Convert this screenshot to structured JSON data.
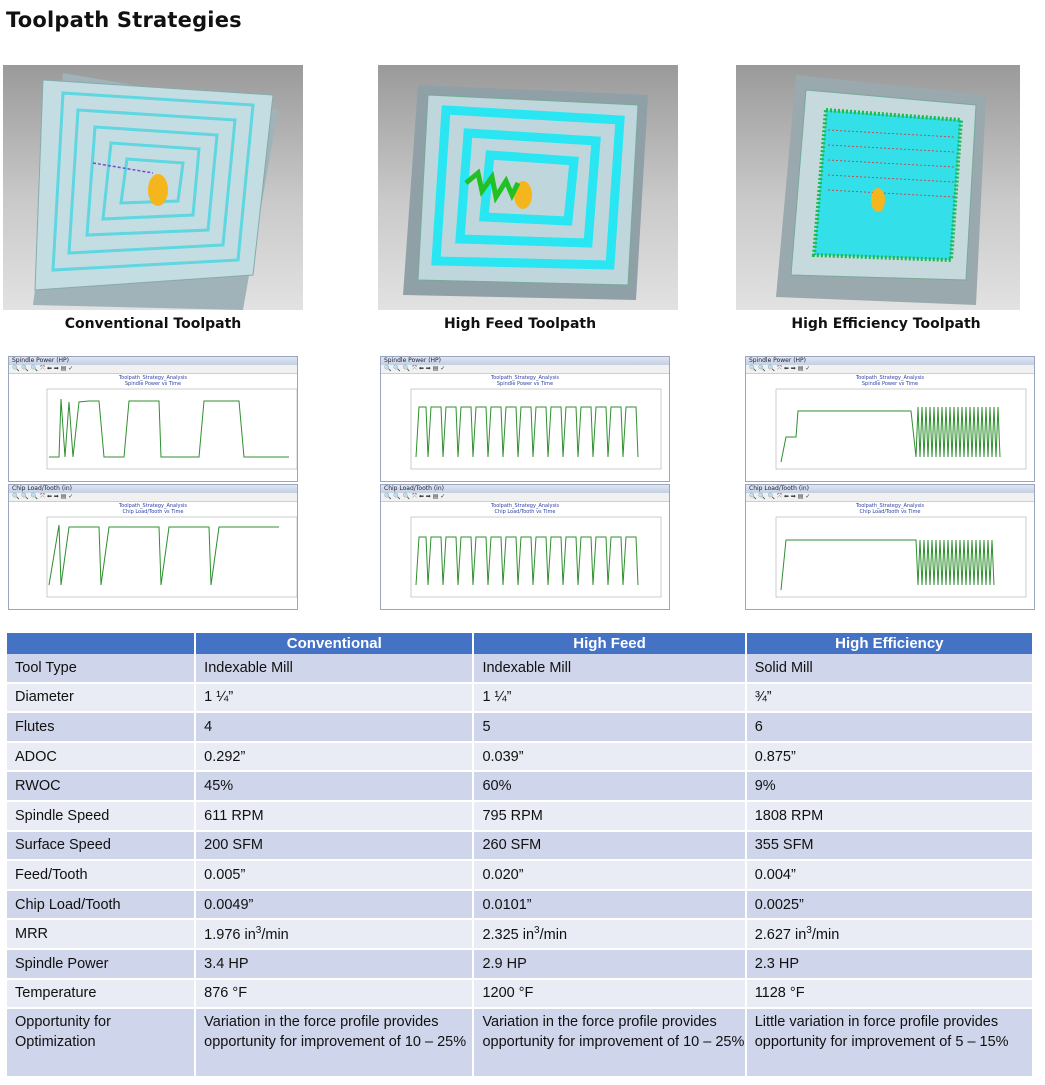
{
  "title": "Toolpath Strategies",
  "panels": [
    {
      "caption": "Conventional Toolpath"
    },
    {
      "caption": "High Feed Toolpath"
    },
    {
      "caption": "High Efficiency Toolpath"
    }
  ],
  "plot_windows": {
    "spindle_title": "Spindle Power (HP)",
    "chipload_title": "Chip Load/Tooth (in)",
    "analysis_title": "Toolpath_Strategy_Analysis",
    "spindle_subtitle": "Spindle Power vs Time",
    "chipload_subtitle": "Chip Load/Tooth vs Time",
    "colors": {
      "trace": "#2f8f2f",
      "frame": "#2b3fa8"
    }
  },
  "table": {
    "headers": [
      "",
      "Conventional",
      "High Feed",
      "High Efficiency"
    ],
    "rows": [
      {
        "label": "Tool Type",
        "values": [
          "Indexable Mill",
          "Indexable Mill",
          "Solid Mill"
        ]
      },
      {
        "label": "Diameter",
        "values": [
          "1 ¼”",
          "1 ¼”",
          "¾”"
        ]
      },
      {
        "label": "Flutes",
        "values": [
          "4",
          "5",
          "6"
        ]
      },
      {
        "label": "ADOC",
        "values": [
          "0.292”",
          "0.039”",
          "0.875”"
        ]
      },
      {
        "label": "RWOC",
        "values": [
          "45%",
          "60%",
          "9%"
        ]
      },
      {
        "label": "Spindle Speed",
        "values": [
          "611 RPM",
          "795 RPM",
          "1808 RPM"
        ]
      },
      {
        "label": "Surface Speed",
        "values": [
          "200 SFM",
          "260 SFM",
          "355 SFM"
        ]
      },
      {
        "label": "Feed/Tooth",
        "values": [
          "0.005”",
          "0.020”",
          "0.004”"
        ]
      },
      {
        "label": "Chip Load/Tooth",
        "values": [
          "0.0049”",
          "0.0101”",
          "0.0025”"
        ]
      },
      {
        "label": "MRR",
        "values": [
          "1.976 in",
          "2.325 in",
          "2.627 in"
        ],
        "unit_sup": "3",
        "unit_tail": "/min"
      },
      {
        "label": "Spindle Power",
        "values": [
          "3.4 HP",
          "2.9 HP",
          "2.3 HP"
        ]
      },
      {
        "label": "Temperature",
        "values": [
          "876 °F",
          "1200 °F",
          "1128 °F"
        ]
      },
      {
        "label": "Opportunity for Optimization",
        "values": [
          "Variation in the force profile provides opportunity for improvement of 10 – 25%",
          "Variation in the force profile provides opportunity for improvement of 10 – 25%",
          "Little variation in force profile provides opportunity for improvement of 5 – 15%"
        ]
      }
    ]
  }
}
